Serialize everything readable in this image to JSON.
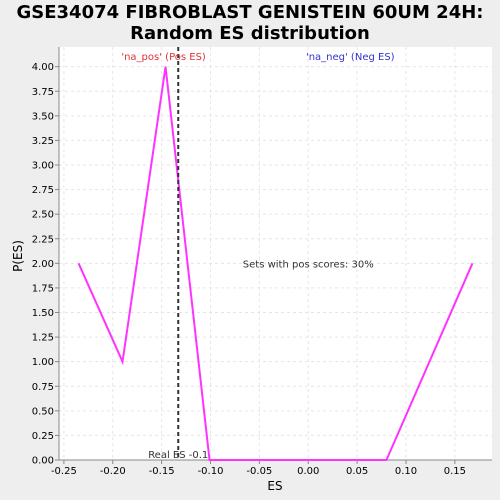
{
  "chart_data": {
    "type": "line",
    "title_line1": "GSE34074 FIBROBLAST GENISTEIN 60UM 24H:",
    "title_line2": "Random ES distribution",
    "xlabel": "ES",
    "ylabel": "P(ES)",
    "xlim": [
      -0.255,
      0.188
    ],
    "ylim": [
      0,
      4.2
    ],
    "x_ticks": [
      -0.25,
      -0.2,
      -0.15,
      -0.1,
      -0.05,
      0.0,
      0.05,
      0.1,
      0.15
    ],
    "x_tick_labels": [
      "-0.25",
      "-0.20",
      "-0.15",
      "-0.10",
      "-0.05",
      "0.00",
      "0.05",
      "0.10",
      "0.15"
    ],
    "y_ticks": [
      0,
      0.25,
      0.5,
      0.75,
      1.0,
      1.25,
      1.5,
      1.75,
      2.0,
      2.25,
      2.5,
      2.75,
      3.0,
      3.25,
      3.5,
      3.75,
      4.0
    ],
    "y_tick_labels": [
      "0.00",
      "0.25",
      "0.50",
      "0.75",
      "1.00",
      "1.25",
      "1.50",
      "1.75",
      "2.00",
      "2.25",
      "2.50",
      "2.75",
      "3.00",
      "3.25",
      "3.50",
      "3.75",
      "4.00"
    ],
    "grid": true,
    "series": [
      {
        "color": "#ff33ff",
        "x": [
          -0.235,
          -0.19,
          -0.146,
          -0.101,
          0.08,
          0.168
        ],
        "y": [
          2.0,
          1.0,
          4.0,
          0.0,
          0.0,
          2.0
        ]
      }
    ],
    "real_es": -0.133,
    "real_es_label": "Real ES -0.1",
    "annotations": {
      "pos_label": "'na_pos' (Pos ES)",
      "pos_color": "#dd3333",
      "neg_label": "'na_neg' (Neg ES)",
      "neg_color": "#3333cc",
      "center_text": "Sets with pos scores: 30%"
    }
  }
}
